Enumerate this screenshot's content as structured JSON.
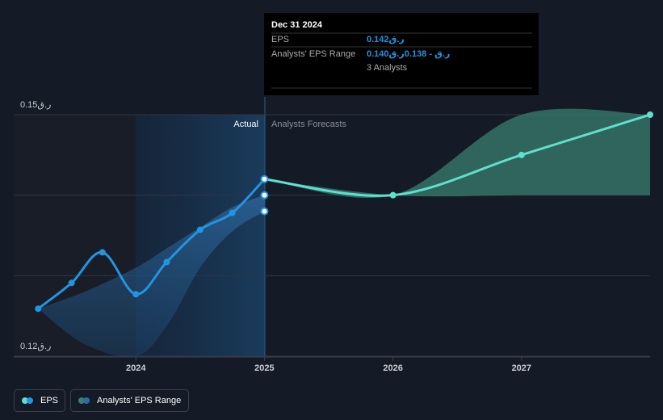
{
  "chart_data": {
    "type": "line",
    "xlim": [
      2023.05,
      2028.0
    ],
    "xticks": [
      2024,
      2025,
      2026,
      2027
    ],
    "ylim": [
      0.12,
      0.15
    ],
    "yticks": [
      {
        "value": 0.12,
        "label": "0.12ر.ق"
      },
      {
        "value": 0.13,
        "label": null
      },
      {
        "value": 0.14,
        "label": null
      },
      {
        "value": 0.15,
        "label": "0.15ر.ق"
      }
    ],
    "grid": true,
    "annotations": {
      "actual": "Actual",
      "forecast": "Analysts Forecasts"
    },
    "series": [
      {
        "name": "EPS",
        "color": "#2394df",
        "x": [
          2023.24,
          2023.5,
          2023.74,
          2024.0,
          2024.24,
          2024.5,
          2024.75,
          2025.0
        ],
        "values": [
          0.1259,
          0.1291,
          0.1329,
          0.1277,
          0.1317,
          0.1357,
          0.1378,
          0.142
        ],
        "forecast_color": "#5ee0cf",
        "forecast_x": [
          2025.0,
          2026.0,
          2027.0,
          2028.0
        ],
        "forecast_values": [
          0.142,
          0.14,
          0.145,
          0.15
        ]
      },
      {
        "name": "Analysts' EPS Range",
        "color": "#2e6da4",
        "x": [
          2023.24,
          2023.6,
          2024.0,
          2024.25,
          2024.5,
          2024.75,
          2025.0
        ],
        "high": [
          0.1259,
          0.128,
          0.131,
          0.1335,
          0.136,
          0.1385,
          0.14
        ],
        "low": [
          0.1259,
          0.1215,
          0.12,
          0.124,
          0.131,
          0.1355,
          0.138
        ],
        "forecast_color": "#3a7f70",
        "forecast_x": [
          2025.0,
          2026.0,
          2027.0,
          2028.0
        ],
        "forecast_high": [
          0.142,
          0.14,
          0.15,
          0.15
        ],
        "forecast_low": [
          0.142,
          0.14,
          0.14,
          0.14
        ]
      }
    ],
    "tooltip": {
      "title": "Dec 31 2024",
      "rows": [
        {
          "label": "EPS",
          "value": "0.142ر.ق"
        },
        {
          "label": "Analysts' EPS Range",
          "value": "0.140ر.ق - 0.138ر.ق"
        }
      ],
      "note": "3 Analysts"
    }
  }
}
